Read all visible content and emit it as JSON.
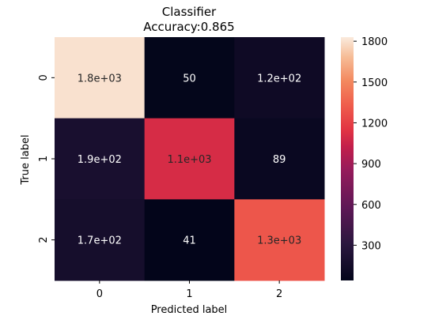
{
  "chart_data": {
    "type": "heatmap",
    "title": "Classifier",
    "subtitle": "Accuracy:0.865",
    "xlabel": "Predicted label",
    "ylabel": "True label",
    "x_categories": [
      "0",
      "1",
      "2"
    ],
    "y_categories": [
      "0",
      "1",
      "2"
    ],
    "values": [
      [
        1800,
        50,
        120
      ],
      [
        190,
        1100,
        89
      ],
      [
        170,
        41,
        1300
      ]
    ],
    "annotations": [
      [
        "1.8e+03",
        "50",
        "1.2e+02"
      ],
      [
        "1.9e+02",
        "1.1e+03",
        "89"
      ],
      [
        "1.7e+02",
        "41",
        "1.3e+03"
      ]
    ],
    "colorbar": {
      "ticks": [
        "300",
        "600",
        "900",
        "1200",
        "1500",
        "1800"
      ],
      "tick_values": [
        300,
        600,
        900,
        1200,
        1500,
        1800
      ],
      "vmin": 41,
      "vmax": 1830,
      "colormap": "rocket"
    }
  }
}
